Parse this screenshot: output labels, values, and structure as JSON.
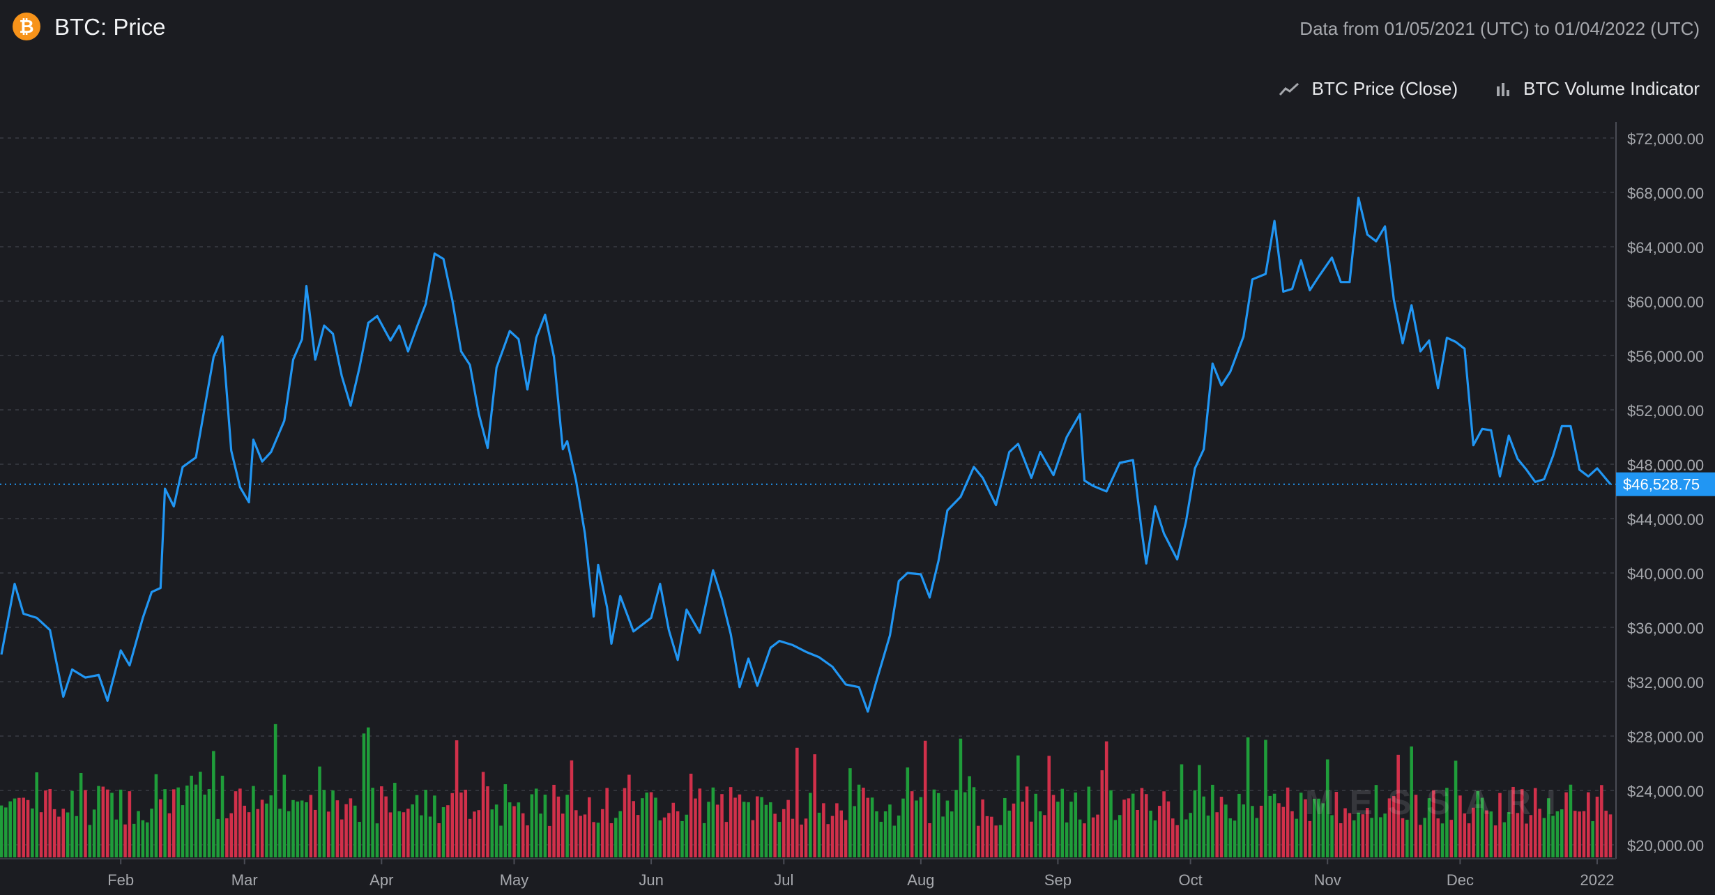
{
  "header": {
    "coin_icon": "bitcoin-icon",
    "title": "BTC: Price",
    "date_range": "Data from 01/05/2021 (UTC) to 01/04/2022 (UTC)"
  },
  "legend": {
    "price_label": "BTC Price (Close)",
    "price_icon": "line-chart-icon",
    "volume_label": "BTC Volume Indicator",
    "volume_icon": "bar-chart-icon"
  },
  "watermark": "MESSARI",
  "colors": {
    "background": "#1b1c21",
    "price_line": "#2196f3",
    "volume_up": "#1f9d3a",
    "volume_down": "#d1304a",
    "grid": "#3a3c44",
    "axis_text": "#a6a8ad",
    "current_price_badge": "#2196f3"
  },
  "chart_data": {
    "type": "line",
    "title": "BTC: Price",
    "series": [
      {
        "name": "BTC Price (Close)",
        "points": [
          [
            "2021-01-05",
            34000
          ],
          [
            "2021-01-08",
            39200
          ],
          [
            "2021-01-10",
            37000
          ],
          [
            "2021-01-13",
            36700
          ],
          [
            "2021-01-16",
            35800
          ],
          [
            "2021-01-19",
            30900
          ],
          [
            "2021-01-21",
            32900
          ],
          [
            "2021-01-24",
            32300
          ],
          [
            "2021-01-27",
            32500
          ],
          [
            "2021-01-29",
            30600
          ],
          [
            "2021-02-01",
            34300
          ],
          [
            "2021-02-03",
            33200
          ],
          [
            "2021-02-06",
            36700
          ],
          [
            "2021-02-08",
            38600
          ],
          [
            "2021-02-10",
            38900
          ],
          [
            "2021-02-11",
            46200
          ],
          [
            "2021-02-13",
            44900
          ],
          [
            "2021-02-15",
            47800
          ],
          [
            "2021-02-18",
            48500
          ],
          [
            "2021-02-20",
            52200
          ],
          [
            "2021-02-22",
            55900
          ],
          [
            "2021-02-24",
            57400
          ],
          [
            "2021-02-26",
            49000
          ],
          [
            "2021-02-28",
            46300
          ],
          [
            "2021-03-02",
            45200
          ],
          [
            "2021-03-03",
            49800
          ],
          [
            "2021-03-05",
            48200
          ],
          [
            "2021-03-07",
            48900
          ],
          [
            "2021-03-10",
            51200
          ],
          [
            "2021-03-12",
            55700
          ],
          [
            "2021-03-14",
            57200
          ],
          [
            "2021-03-15",
            61100
          ],
          [
            "2021-03-17",
            55700
          ],
          [
            "2021-03-19",
            58200
          ],
          [
            "2021-03-21",
            57600
          ],
          [
            "2021-03-23",
            54500
          ],
          [
            "2021-03-25",
            52300
          ],
          [
            "2021-03-27",
            55100
          ],
          [
            "2021-03-29",
            58400
          ],
          [
            "2021-03-31",
            58900
          ],
          [
            "2021-04-03",
            57100
          ],
          [
            "2021-04-05",
            58200
          ],
          [
            "2021-04-07",
            56300
          ],
          [
            "2021-04-09",
            58100
          ],
          [
            "2021-04-11",
            59800
          ],
          [
            "2021-04-13",
            63500
          ],
          [
            "2021-04-15",
            63100
          ],
          [
            "2021-04-17",
            60100
          ],
          [
            "2021-04-19",
            56300
          ],
          [
            "2021-04-21",
            55300
          ],
          [
            "2021-04-23",
            51700
          ],
          [
            "2021-04-25",
            49200
          ],
          [
            "2021-04-27",
            55100
          ],
          [
            "2021-04-30",
            57800
          ],
          [
            "2021-05-02",
            57200
          ],
          [
            "2021-05-04",
            53500
          ],
          [
            "2021-05-06",
            57300
          ],
          [
            "2021-05-08",
            59000
          ],
          [
            "2021-05-10",
            55900
          ],
          [
            "2021-05-12",
            49100
          ],
          [
            "2021-05-13",
            49700
          ],
          [
            "2021-05-15",
            46800
          ],
          [
            "2021-05-17",
            42900
          ],
          [
            "2021-05-19",
            36800
          ],
          [
            "2021-05-20",
            40600
          ],
          [
            "2021-05-22",
            37500
          ],
          [
            "2021-05-23",
            34800
          ],
          [
            "2021-05-25",
            38300
          ],
          [
            "2021-05-28",
            35700
          ],
          [
            "2021-06-01",
            36700
          ],
          [
            "2021-06-03",
            39200
          ],
          [
            "2021-06-05",
            35800
          ],
          [
            "2021-06-07",
            33600
          ],
          [
            "2021-06-09",
            37300
          ],
          [
            "2021-06-12",
            35600
          ],
          [
            "2021-06-15",
            40200
          ],
          [
            "2021-06-17",
            38100
          ],
          [
            "2021-06-19",
            35500
          ],
          [
            "2021-06-21",
            31600
          ],
          [
            "2021-06-23",
            33700
          ],
          [
            "2021-06-25",
            31700
          ],
          [
            "2021-06-28",
            34500
          ],
          [
            "2021-06-30",
            35000
          ],
          [
            "2021-07-03",
            34700
          ],
          [
            "2021-07-06",
            34200
          ],
          [
            "2021-07-09",
            33800
          ],
          [
            "2021-07-12",
            33100
          ],
          [
            "2021-07-15",
            31800
          ],
          [
            "2021-07-18",
            31600
          ],
          [
            "2021-07-20",
            29800
          ],
          [
            "2021-07-22",
            32100
          ],
          [
            "2021-07-25",
            35400
          ],
          [
            "2021-07-27",
            39400
          ],
          [
            "2021-07-29",
            40000
          ],
          [
            "2021-08-01",
            39900
          ],
          [
            "2021-08-03",
            38200
          ],
          [
            "2021-08-05",
            40900
          ],
          [
            "2021-08-07",
            44600
          ],
          [
            "2021-08-10",
            45600
          ],
          [
            "2021-08-13",
            47800
          ],
          [
            "2021-08-15",
            47000
          ],
          [
            "2021-08-18",
            45000
          ],
          [
            "2021-08-21",
            48900
          ],
          [
            "2021-08-23",
            49500
          ],
          [
            "2021-08-26",
            47000
          ],
          [
            "2021-08-28",
            48900
          ],
          [
            "2021-08-31",
            47200
          ],
          [
            "2021-09-03",
            50000
          ],
          [
            "2021-09-06",
            51700
          ],
          [
            "2021-09-07",
            46800
          ],
          [
            "2021-09-09",
            46400
          ],
          [
            "2021-09-12",
            46000
          ],
          [
            "2021-09-15",
            48100
          ],
          [
            "2021-09-18",
            48300
          ],
          [
            "2021-09-20",
            43000
          ],
          [
            "2021-09-21",
            40700
          ],
          [
            "2021-09-23",
            44900
          ],
          [
            "2021-09-25",
            42900
          ],
          [
            "2021-09-28",
            41000
          ],
          [
            "2021-09-30",
            43800
          ],
          [
            "2021-10-02",
            47700
          ],
          [
            "2021-10-04",
            49100
          ],
          [
            "2021-10-06",
            55400
          ],
          [
            "2021-10-08",
            53800
          ],
          [
            "2021-10-10",
            54800
          ],
          [
            "2021-10-13",
            57400
          ],
          [
            "2021-10-15",
            61600
          ],
          [
            "2021-10-18",
            62000
          ],
          [
            "2021-10-20",
            65900
          ],
          [
            "2021-10-22",
            60700
          ],
          [
            "2021-10-24",
            60900
          ],
          [
            "2021-10-26",
            63000
          ],
          [
            "2021-10-28",
            60800
          ],
          [
            "2021-10-30",
            61800
          ],
          [
            "2021-11-02",
            63200
          ],
          [
            "2021-11-04",
            61400
          ],
          [
            "2021-11-06",
            61400
          ],
          [
            "2021-11-08",
            67600
          ],
          [
            "2021-11-10",
            64900
          ],
          [
            "2021-11-12",
            64400
          ],
          [
            "2021-11-14",
            65500
          ],
          [
            "2021-11-16",
            60100
          ],
          [
            "2021-11-18",
            56900
          ],
          [
            "2021-11-20",
            59700
          ],
          [
            "2021-11-22",
            56300
          ],
          [
            "2021-11-24",
            57100
          ],
          [
            "2021-11-26",
            53600
          ],
          [
            "2021-11-28",
            57300
          ],
          [
            "2021-11-30",
            57000
          ],
          [
            "2021-12-02",
            56500
          ],
          [
            "2021-12-04",
            49400
          ],
          [
            "2021-12-06",
            50600
          ],
          [
            "2021-12-08",
            50500
          ],
          [
            "2021-12-10",
            47100
          ],
          [
            "2021-12-12",
            50100
          ],
          [
            "2021-12-14",
            48400
          ],
          [
            "2021-12-16",
            47600
          ],
          [
            "2021-12-18",
            46700
          ],
          [
            "2021-12-20",
            46900
          ],
          [
            "2021-12-22",
            48600
          ],
          [
            "2021-12-24",
            50800
          ],
          [
            "2021-12-26",
            50800
          ],
          [
            "2021-12-28",
            47600
          ],
          [
            "2021-12-30",
            47100
          ],
          [
            "2022-01-01",
            47700
          ],
          [
            "2022-01-04",
            46528.75
          ]
        ]
      }
    ],
    "volume": {
      "name": "BTC Volume Indicator",
      "note": "relative daily volume bars, green = up day, red = down day"
    },
    "current_price_label": "$46,528.75",
    "y_axis": {
      "ylim": [
        18000,
        74000
      ],
      "tick_labels": [
        "$72,000.00",
        "$68,000.00",
        "$64,000.00",
        "$60,000.00",
        "$56,000.00",
        "$52,000.00",
        "$48,000.00",
        "$44,000.00",
        "$40,000.00",
        "$36,000.00",
        "$32,000.00",
        "$28,000.00",
        "$24,000.00",
        "$20,000.00"
      ],
      "tick_values": [
        72000,
        68000,
        64000,
        60000,
        56000,
        52000,
        48000,
        44000,
        40000,
        36000,
        32000,
        28000,
        24000,
        20000
      ]
    },
    "x_axis": {
      "range": [
        "2021-01-05",
        "2022-01-04"
      ],
      "tick_labels": [
        "Feb",
        "Mar",
        "Apr",
        "May",
        "Jun",
        "Jul",
        "Aug",
        "Sep",
        "Oct",
        "Nov",
        "Dec",
        "2022"
      ],
      "tick_dates": [
        "2021-02-01",
        "2021-03-01",
        "2021-04-01",
        "2021-05-01",
        "2021-06-01",
        "2021-07-01",
        "2021-08-01",
        "2021-09-01",
        "2021-10-01",
        "2021-11-01",
        "2021-12-01",
        "2022-01-01"
      ]
    },
    "grid": true,
    "legend_position": "top-right"
  }
}
